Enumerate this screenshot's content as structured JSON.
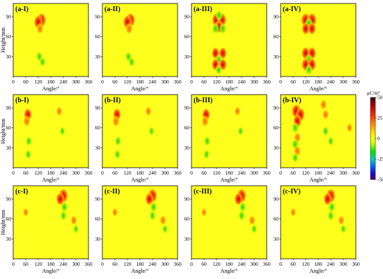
{
  "chart_data": [
    {
      "type": "heatmap",
      "rows": [
        {
          "panels": [
            "(a-I)",
            "(a-II)",
            "(a-III)",
            "(a-IV)"
          ],
          "ylabel": "Height/mm",
          "xlabel": "Angle/°"
        },
        {
          "panels": [
            "(b-I)",
            "(b-II)",
            "(b-III)",
            "(b-IV)"
          ],
          "ylabel": "Height/mm",
          "xlabel": "Angle/°"
        },
        {
          "panels": [
            "(c-I)",
            "(c-II)",
            "(c-III)",
            "(c-IV)"
          ],
          "ylabel": "Height/mm",
          "xlabel": "Angle/°"
        }
      ],
      "xlim": [
        0,
        360
      ],
      "ylim": [
        0,
        110
      ],
      "xticks": [
        "0",
        "60",
        "120",
        "180",
        "240",
        "300",
        "360"
      ],
      "yticks": [
        "30",
        "60",
        "90"
      ],
      "colorbar": {
        "unit": "μC/m²",
        "range": [
          -50,
          50
        ],
        "ticks": [
          "50",
          "25",
          "0",
          "-25",
          "-50"
        ],
        "colors": [
          "#3a0a0a",
          "#b40000",
          "#ff3000",
          "#ff9600",
          "#ffe600",
          "#ffff00",
          "#c8ff00",
          "#00e600",
          "#00c8c8",
          "#0050ff",
          "#2000c0",
          "#4a0070"
        ]
      },
      "background_color": "#ffff1e",
      "blobs": {
        "a1": [
          [
            135,
            85,
            1,
            1
          ],
          [
            120,
            82,
            0.9,
            1
          ],
          [
            128,
            72,
            0.6,
            1
          ],
          [
            125,
            30,
            0.5,
            -1
          ],
          [
            140,
            22,
            0.45,
            -1
          ]
        ],
        "a3": [
          [
            120,
            85,
            1,
            1
          ],
          [
            145,
            85,
            1,
            1
          ],
          [
            132,
            75,
            0.8,
            1
          ],
          [
            115,
            72,
            0.6,
            -1
          ],
          [
            150,
            72,
            0.6,
            -1
          ],
          [
            132,
            92,
            0.6,
            -1
          ],
          [
            115,
            35,
            0.7,
            1
          ],
          [
            150,
            35,
            0.7,
            1
          ],
          [
            130,
            25,
            0.6,
            -1
          ],
          [
            115,
            18,
            0.7,
            1
          ],
          [
            150,
            18,
            0.7,
            1
          ],
          [
            130,
            10,
            0.5,
            -1
          ]
        ],
        "a4": [
          [
            120,
            85,
            1,
            1
          ],
          [
            150,
            85,
            1,
            1
          ],
          [
            135,
            80,
            0.7,
            -1
          ],
          [
            120,
            72,
            0.7,
            1
          ],
          [
            150,
            72,
            0.7,
            1
          ],
          [
            120,
            35,
            0.8,
            1
          ],
          [
            150,
            35,
            0.8,
            1
          ],
          [
            135,
            25,
            0.7,
            -1
          ],
          [
            120,
            18,
            0.8,
            1
          ],
          [
            150,
            18,
            0.8,
            1
          ],
          [
            135,
            10,
            0.6,
            -1
          ]
        ],
        "b1": [
          [
            70,
            80,
            0.75,
            1
          ],
          [
            65,
            70,
            0.6,
            1
          ],
          [
            75,
            40,
            0.5,
            -1
          ],
          [
            72,
            20,
            0.45,
            -1
          ],
          [
            220,
            85,
            0.4,
            1
          ],
          [
            235,
            55,
            0.35,
            -1
          ]
        ],
        "b4": [
          [
            75,
            85,
            1,
            1
          ],
          [
            95,
            80,
            0.9,
            1
          ],
          [
            80,
            70,
            0.8,
            1
          ],
          [
            70,
            60,
            0.6,
            -1
          ],
          [
            80,
            45,
            0.6,
            1
          ],
          [
            70,
            35,
            0.6,
            -1
          ],
          [
            80,
            25,
            0.6,
            1
          ],
          [
            70,
            15,
            0.5,
            -1
          ],
          [
            205,
            95,
            0.5,
            1
          ],
          [
            215,
            80,
            0.5,
            1
          ],
          [
            215,
            55,
            0.5,
            -1
          ],
          [
            240,
            40,
            0.4,
            -1
          ],
          [
            330,
            60,
            0.35,
            1
          ]
        ],
        "c1": [
          [
            240,
            95,
            1,
            1
          ],
          [
            225,
            90,
            0.8,
            1
          ],
          [
            245,
            78,
            0.6,
            -1
          ],
          [
            240,
            65,
            0.5,
            -1
          ],
          [
            290,
            58,
            0.45,
            1
          ],
          [
            300,
            45,
            0.35,
            -1
          ],
          [
            60,
            70,
            0.3,
            1
          ]
        ]
      }
    }
  ]
}
